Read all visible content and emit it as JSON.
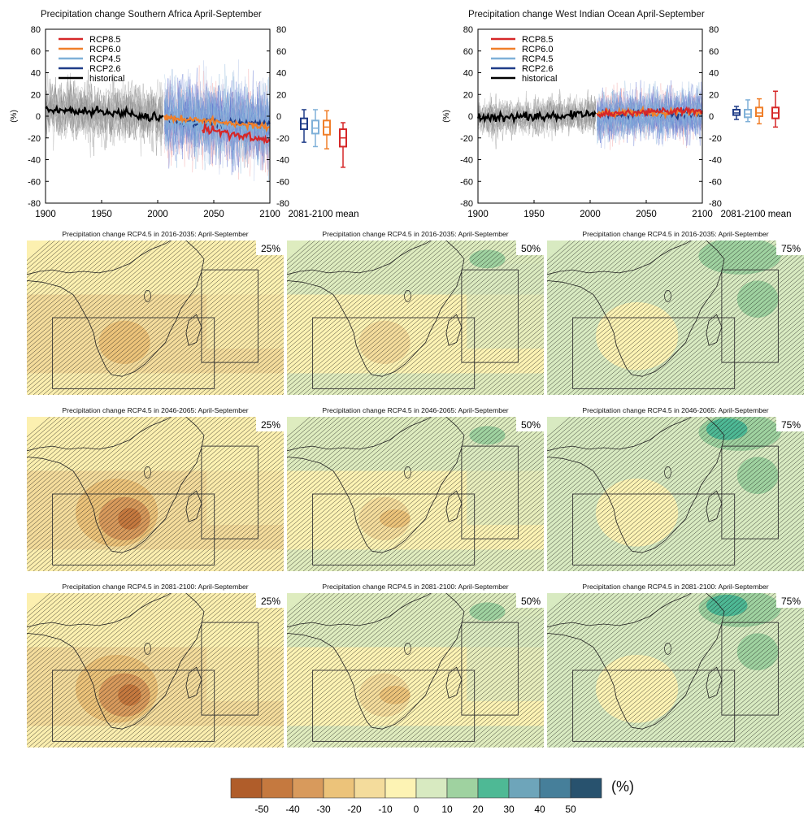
{
  "timeseries": [
    {
      "title": "Precipitation change Southern Africa April-September",
      "ylabel": "(%)",
      "mean_label": "2081-2100 mean",
      "region": "sa"
    },
    {
      "title": "Precipitation change West Indian Ocean April-September",
      "ylabel": "(%)",
      "mean_label": "2081-2100 mean",
      "region": "wio"
    }
  ],
  "legend": [
    {
      "name": "RCP8.5",
      "color": "#d62728"
    },
    {
      "name": "RCP6.0",
      "color": "#f07f2a"
    },
    {
      "name": "RCP4.5",
      "color": "#7fb0d8"
    },
    {
      "name": "RCP2.6",
      "color": "#1f3c88"
    },
    {
      "name": "historical",
      "color": "#000000"
    }
  ],
  "maps": {
    "rows": [
      {
        "title": "Precipitation change RCP4.5 in 2016-2035: April-September",
        "period": "2016-2035"
      },
      {
        "title": "Precipitation change RCP4.5 in 2046-2065: April-September",
        "period": "2046-2065"
      },
      {
        "title": "Precipitation change RCP4.5 in 2081-2100: April-September",
        "period": "2081-2100"
      }
    ],
    "percentiles": [
      "25%",
      "50%",
      "75%"
    ]
  },
  "colorbar": {
    "unit": "(%)",
    "ticks": [
      "-50",
      "-40",
      "-30",
      "-20",
      "-10",
      "0",
      "10",
      "20",
      "30",
      "40",
      "50"
    ],
    "colors": [
      "#b05d2a",
      "#c5793f",
      "#d89a5c",
      "#ecc37a",
      "#f4dc9c",
      "#fdf3b4",
      "#d8eac1",
      "#9fd2a0",
      "#4eb995",
      "#6ea5ba",
      "#467f9a",
      "#28526e"
    ]
  },
  "chart_data": [
    {
      "type": "line",
      "title": "Precipitation change Southern Africa April-September",
      "xlabel": "",
      "ylabel": "(%)",
      "xlim": [
        1900,
        2100
      ],
      "ylim": [
        -80,
        80
      ],
      "x_ticks": [
        1900,
        1950,
        2000,
        2050,
        2100
      ],
      "y_ticks": [
        -80,
        -60,
        -40,
        -20,
        0,
        20,
        40,
        60,
        80
      ],
      "series": [
        {
          "name": "historical",
          "x": [
            1900,
            1925,
            1950,
            1975,
            2005
          ],
          "y": [
            7,
            5,
            4,
            2,
            0
          ]
        },
        {
          "name": "RCP2.6",
          "x": [
            2006,
            2025,
            2050,
            2075,
            2100
          ],
          "y": [
            -2,
            -5,
            -6,
            -7,
            -7
          ]
        },
        {
          "name": "RCP4.5",
          "x": [
            2006,
            2025,
            2050,
            2075,
            2100
          ],
          "y": [
            -2,
            -5,
            -7,
            -10,
            -11
          ]
        },
        {
          "name": "RCP6.0",
          "x": [
            2006,
            2025,
            2050,
            2075,
            2100
          ],
          "y": [
            -1,
            -3,
            -5,
            -8,
            -10
          ]
        },
        {
          "name": "RCP8.5",
          "x": [
            2040,
            2060,
            2080,
            2100
          ],
          "y": [
            -12,
            -15,
            -19,
            -23
          ]
        }
      ],
      "boxes_2081_2100_mean": [
        {
          "name": "RCP2.6",
          "min": -24,
          "q1": -12,
          "median": -7,
          "q3": -2,
          "max": 6
        },
        {
          "name": "RCP4.5",
          "min": -28,
          "q1": -16,
          "median": -11,
          "q3": -4,
          "max": 6
        },
        {
          "name": "RCP6.0",
          "min": -30,
          "q1": -17,
          "median": -10,
          "q3": -4,
          "max": 5
        },
        {
          "name": "RCP8.5",
          "min": -47,
          "q1": -28,
          "median": -20,
          "q3": -12,
          "max": -6
        }
      ]
    },
    {
      "type": "line",
      "title": "Precipitation change West Indian Ocean April-September",
      "xlabel": "",
      "ylabel": "(%)",
      "xlim": [
        1900,
        2100
      ],
      "ylim": [
        -80,
        80
      ],
      "x_ticks": [
        1900,
        1950,
        2000,
        2050,
        2100
      ],
      "y_ticks": [
        -80,
        -60,
        -40,
        -20,
        0,
        20,
        40,
        60,
        80
      ],
      "series": [
        {
          "name": "historical",
          "x": [
            1900,
            1925,
            1950,
            1975,
            2005
          ],
          "y": [
            -2,
            -1,
            0,
            1,
            2
          ]
        },
        {
          "name": "RCP2.6",
          "x": [
            2006,
            2025,
            2050,
            2075,
            2100
          ],
          "y": [
            2,
            2,
            3,
            3,
            3
          ]
        },
        {
          "name": "RCP4.5",
          "x": [
            2006,
            2025,
            2050,
            2075,
            2100
          ],
          "y": [
            2,
            3,
            3,
            3,
            3
          ]
        },
        {
          "name": "RCP6.0",
          "x": [
            2006,
            2025,
            2050,
            2075,
            2100
          ],
          "y": [
            2,
            3,
            4,
            4,
            4
          ]
        },
        {
          "name": "RCP8.5",
          "x": [
            2006,
            2025,
            2050,
            2075,
            2100
          ],
          "y": [
            2,
            3,
            4,
            5,
            5
          ]
        }
      ],
      "boxes_2081_2100_mean": [
        {
          "name": "RCP2.6",
          "min": -3,
          "q1": 1,
          "median": 3,
          "q3": 6,
          "max": 9
        },
        {
          "name": "RCP4.5",
          "min": -5,
          "q1": -1,
          "median": 2,
          "q3": 6,
          "max": 15
        },
        {
          "name": "RCP6.0",
          "min": -7,
          "q1": 0,
          "median": 3,
          "q3": 8,
          "max": 16
        },
        {
          "name": "RCP8.5",
          "min": -10,
          "q1": -2,
          "median": 3,
          "q3": 8,
          "max": 23
        }
      ]
    }
  ]
}
